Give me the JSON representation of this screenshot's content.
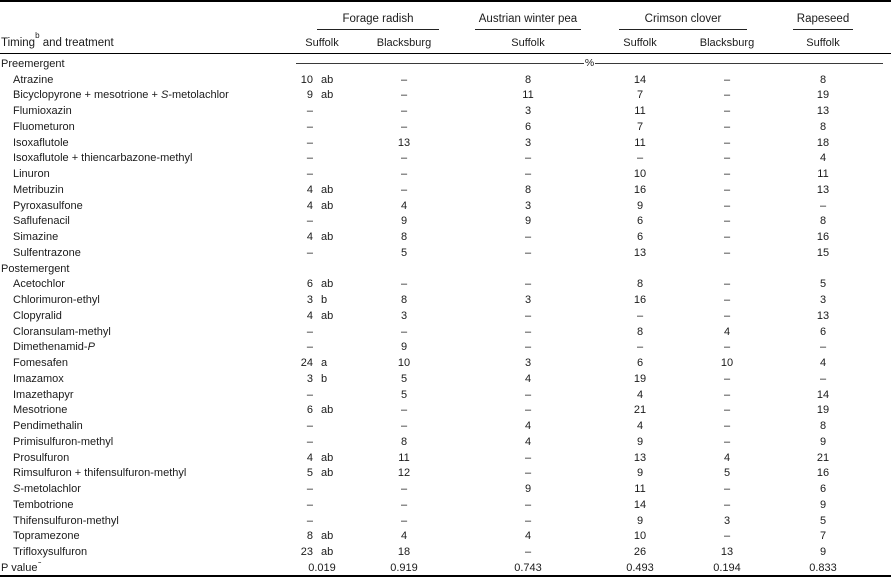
{
  "table": {
    "corner": {
      "label_main": "Timing",
      "label_sup": "b",
      "label_rest": " and treatment"
    },
    "groups": [
      {
        "label": "Forage radish",
        "cols": [
          "Suffolk",
          "Blacksburg"
        ]
      },
      {
        "label": "Austrian winter pea",
        "cols": [
          "Suffolk"
        ]
      },
      {
        "label": "Crimson clover",
        "cols": [
          "Suffolk",
          "Blacksburg"
        ]
      },
      {
        "label": "Rapeseed",
        "cols": [
          "Suffolk"
        ]
      }
    ],
    "units_label": "%",
    "column_keys": [
      "forage_radish_suffolk",
      "significance_letter",
      "forage_radish_blacksburg",
      "austrian_winter_pea_suffolk",
      "crimson_clover_suffolk",
      "crimson_clover_blacksburg",
      "rapeseed_suffolk"
    ],
    "rows": [
      {
        "type": "section",
        "name": "Preemergent",
        "units": true
      },
      {
        "type": "treatment",
        "name": "Atrazine",
        "values": [
          "10",
          "ab",
          "–",
          "8",
          "14",
          "–",
          "8"
        ]
      },
      {
        "type": "treatment",
        "name": "Bicyclopyrone + mesotrione + *S*-metolachlor",
        "values": [
          "9",
          "ab",
          "–",
          "11",
          "7",
          "–",
          "19"
        ]
      },
      {
        "type": "treatment",
        "name": "Flumioxazin",
        "values": [
          "–",
          "",
          "–",
          "3",
          "11",
          "–",
          "13"
        ]
      },
      {
        "type": "treatment",
        "name": "Fluometuron",
        "values": [
          "–",
          "",
          "–",
          "6",
          "7",
          "–",
          "8"
        ]
      },
      {
        "type": "treatment",
        "name": "Isoxaflutole",
        "values": [
          "–",
          "",
          "13",
          "3",
          "11",
          "–",
          "18"
        ]
      },
      {
        "type": "treatment",
        "name": "Isoxaflutole + thiencarbazone-methyl",
        "values": [
          "–",
          "",
          "–",
          "–",
          "–",
          "–",
          "4"
        ]
      },
      {
        "type": "treatment",
        "name": "Linuron",
        "values": [
          "–",
          "",
          "–",
          "–",
          "10",
          "–",
          "11"
        ]
      },
      {
        "type": "treatment",
        "name": "Metribuzin",
        "values": [
          "4",
          "ab",
          "–",
          "8",
          "16",
          "–",
          "13"
        ]
      },
      {
        "type": "treatment",
        "name": "Pyroxasulfone",
        "values": [
          "4",
          "ab",
          "4",
          "3",
          "9",
          "–",
          "–"
        ]
      },
      {
        "type": "treatment",
        "name": "Saflufenacil",
        "values": [
          "–",
          "",
          "9",
          "9",
          "6",
          "–",
          "8"
        ]
      },
      {
        "type": "treatment",
        "name": "Simazine",
        "values": [
          "4",
          "ab",
          "8",
          "–",
          "6",
          "–",
          "16"
        ]
      },
      {
        "type": "treatment",
        "name": "Sulfentrazone",
        "values": [
          "–",
          "",
          "5",
          "–",
          "13",
          "–",
          "15"
        ]
      },
      {
        "type": "section",
        "name": "Postemergent"
      },
      {
        "type": "treatment",
        "name": "Acetochlor",
        "values": [
          "6",
          "ab",
          "–",
          "–",
          "8",
          "–",
          "5"
        ]
      },
      {
        "type": "treatment",
        "name": "Chlorimuron-ethyl",
        "values": [
          "3",
          "b",
          "8",
          "3",
          "16",
          "–",
          "3"
        ]
      },
      {
        "type": "treatment",
        "name": "Clopyralid",
        "values": [
          "4",
          "ab",
          "3",
          "–",
          "–",
          "–",
          "13"
        ]
      },
      {
        "type": "treatment",
        "name": "Cloransulam-methyl",
        "values": [
          "–",
          "",
          "–",
          "–",
          "8",
          "4",
          "6"
        ]
      },
      {
        "type": "treatment",
        "name": "Dimethenamid-*P*",
        "values": [
          "–",
          "",
          "9",
          "–",
          "–",
          "–",
          "–"
        ]
      },
      {
        "type": "treatment",
        "name": "Fomesafen",
        "values": [
          "24",
          "a",
          "10",
          "3",
          "6",
          "10",
          "4"
        ]
      },
      {
        "type": "treatment",
        "name": "Imazamox",
        "values": [
          "3",
          "b",
          "5",
          "4",
          "19",
          "–",
          "–"
        ]
      },
      {
        "type": "treatment",
        "name": "Imazethapyr",
        "values": [
          "–",
          "",
          "5",
          "–",
          "4",
          "–",
          "14"
        ]
      },
      {
        "type": "treatment",
        "name": "Mesotrione",
        "values": [
          "6",
          "ab",
          "–",
          "–",
          "21",
          "–",
          "19"
        ]
      },
      {
        "type": "treatment",
        "name": "Pendimethalin",
        "values": [
          "–",
          "",
          "–",
          "4",
          "4",
          "–",
          "8"
        ]
      },
      {
        "type": "treatment",
        "name": "Primisulfuron-methyl",
        "values": [
          "–",
          "",
          "8",
          "4",
          "9",
          "–",
          "9"
        ]
      },
      {
        "type": "treatment",
        "name": "Prosulfuron",
        "values": [
          "4",
          "ab",
          "11",
          "–",
          "13",
          "4",
          "21"
        ]
      },
      {
        "type": "treatment",
        "name": "Rimsulfuron + thifensulfuron-methyl",
        "values": [
          "5",
          "ab",
          "12",
          "–",
          "9",
          "5",
          "16"
        ]
      },
      {
        "type": "treatment",
        "name": "*S*-metolachlor",
        "values": [
          "–",
          "",
          "–",
          "9",
          "11",
          "–",
          "6"
        ]
      },
      {
        "type": "treatment",
        "name": "Tembotrione",
        "values": [
          "–",
          "",
          "–",
          "–",
          "14",
          "–",
          "9"
        ]
      },
      {
        "type": "treatment",
        "name": "Thifensulfuron-methyl",
        "values": [
          "–",
          "",
          "–",
          "–",
          "9",
          "3",
          "5"
        ]
      },
      {
        "type": "treatment",
        "name": "Topramezone",
        "values": [
          "8",
          "ab",
          "4",
          "4",
          "10",
          "–",
          "7"
        ]
      },
      {
        "type": "treatment",
        "name": "Trifloxysulfuron",
        "values": [
          "23",
          "ab",
          "18",
          "–",
          "26",
          "13",
          "9"
        ]
      }
    ],
    "p_row": {
      "label": "P value",
      "label_sup": "c",
      "values": [
        "0.019",
        "0.919",
        "0.743",
        "0.493",
        "0.194",
        "0.833"
      ]
    }
  }
}
